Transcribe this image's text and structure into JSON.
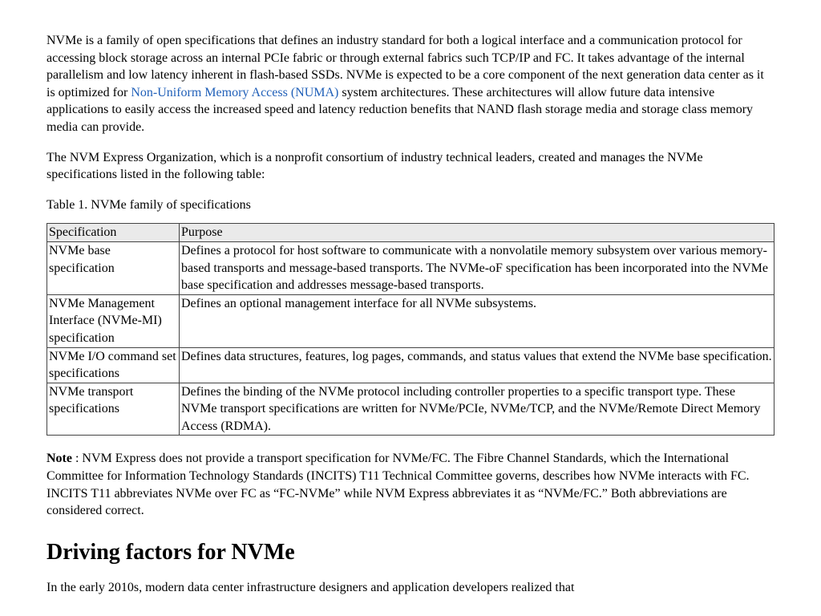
{
  "intro": {
    "part1": "NVMe is a family of open specifications that defines an industry standard for both a logical interface and a communication protocol for accessing block storage across an internal PCIe fabric or through external fabrics such TCP/IP and FC. It takes advantage of the internal parallelism and low latency inherent in flash-based SSDs. NVMe is expected to be a core component of the next generation data center as it is optimized for ",
    "link_text": "Non-Uniform Memory Access (NUMA)",
    "part2": " system architectures. These architectures will allow future data intensive applications to easily access the increased speed and latency reduction benefits that NAND flash storage media and storage class memory media can provide."
  },
  "para2": "The NVM Express Organization, which is a nonprofit consortium of industry technical leaders, created and manages the NVMe specifications listed in the following table:",
  "table_caption": "Table 1. NVMe family of specifications",
  "table": {
    "headers": {
      "spec": "Specification",
      "purpose": "Purpose"
    },
    "rows": [
      {
        "spec": "NVMe base specification",
        "purpose": "Defines a protocol for host software to communicate with a nonvolatile memory subsystem over various memory-based transports and message-based transports. The NVMe-oF specification has been incorporated into the NVMe base specification and addresses message-based transports."
      },
      {
        "spec": "NVMe Management Interface (NVMe-MI) specification",
        "purpose": "Defines an optional management interface for all NVMe subsystems."
      },
      {
        "spec": "NVMe I/O command set specifications",
        "purpose": "Defines data structures, features, log pages, commands, and status values that extend the NVMe base specification."
      },
      {
        "spec": "NVMe transport specifications",
        "purpose": "Defines the binding of the NVMe protocol including controller properties to a specific transport type. These NVMe transport specifications are written for NVMe/PCIe, NVMe/TCP, and the NVMe/Remote Direct Memory Access (RDMA)."
      }
    ]
  },
  "note": {
    "label": "Note",
    "body": " : NVM Express does not provide a transport specification for NVMe/FC. The Fibre Channel Standards, which the International Committee for Information Technology Standards (INCITS) T11 Technical Committee governs, describes how NVMe interacts with FC. INCITS T11 abbreviates NVMe over FC as “FC-NVMe” while NVM Express abbreviates it as “NVMe/FC.” Both abbreviations are considered correct."
  },
  "heading2": "Driving factors for NVMe",
  "cutoff": "In the early 2010s, modern data center infrastructure designers and application developers realized that"
}
